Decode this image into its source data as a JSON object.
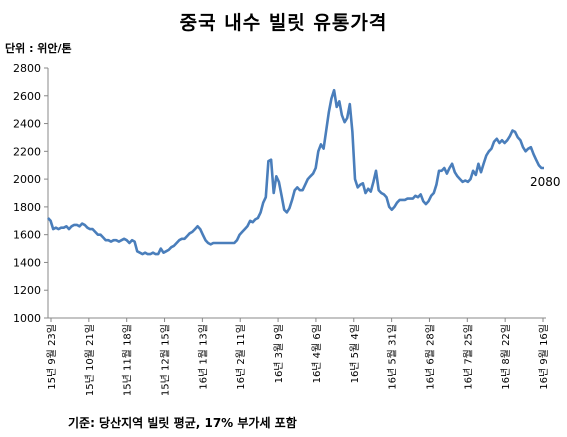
{
  "chart_data": {
    "type": "line",
    "title": "중국 내수 빌릿 유통가격",
    "unit_label": "단위 : 위안/톤",
    "source": "기준: 당산지역 빌릿 평균, 17% 부가세 포함",
    "end_label": "2080",
    "ylim": [
      1000,
      2800
    ],
    "yticks": [
      "1000",
      "1200",
      "1400",
      "1600",
      "1800",
      "2000",
      "2200",
      "2400",
      "2600",
      "2800"
    ],
    "grid": false,
    "legend": "none",
    "line_color": "#4a7ebb",
    "x_tick_labels": [
      "15년 9월 23일",
      "15년 10월 21일",
      "15년 11월 18일",
      "15년 12월 15일",
      "16년 1월 13일",
      "16년 2월 11일",
      "16년 3월 9일",
      "16년 4월 6일",
      "16년 5월 4일",
      "16년 5월 31일",
      "16년 6월 28일",
      "16년 7월 25일",
      "16년 8월 22일",
      "16년 9월 16일"
    ],
    "series": [
      {
        "values": [
          1720,
          1700,
          1640,
          1650,
          1640,
          1650,
          1650,
          1660,
          1640,
          1660,
          1670,
          1670,
          1660,
          1680,
          1670,
          1650,
          1640,
          1640,
          1620,
          1600,
          1600,
          1580,
          1560,
          1560,
          1550,
          1560,
          1560,
          1550,
          1560,
          1570,
          1560,
          1540,
          1560,
          1550,
          1480,
          1470,
          1460,
          1470,
          1460,
          1460,
          1470,
          1460,
          1460,
          1500,
          1470,
          1480,
          1490,
          1510,
          1520,
          1540,
          1560,
          1570,
          1570,
          1590,
          1610,
          1620,
          1640,
          1660,
          1640,
          1600,
          1560,
          1540,
          1530,
          1540,
          1540,
          1540,
          1540,
          1540,
          1540,
          1540,
          1540,
          1540,
          1560,
          1600,
          1620,
          1640,
          1660,
          1700,
          1690,
          1710,
          1720,
          1760,
          1830,
          1870,
          2130,
          2140,
          1900,
          2020,
          1980,
          1880,
          1780,
          1760,
          1790,
          1850,
          1920,
          1940,
          1920,
          1920,
          1960,
          2000,
          2020,
          2040,
          2080,
          2200,
          2250,
          2220,
          2350,
          2480,
          2580,
          2640,
          2520,
          2560,
          2460,
          2410,
          2440,
          2540,
          2340,
          2000,
          1940,
          1960,
          1970,
          1900,
          1930,
          1910,
          1980,
          2060,
          1920,
          1900,
          1890,
          1870,
          1800,
          1780,
          1800,
          1830,
          1850,
          1850,
          1850,
          1860,
          1860,
          1860,
          1880,
          1870,
          1890,
          1840,
          1820,
          1840,
          1880,
          1900,
          1960,
          2060,
          2060,
          2080,
          2040,
          2080,
          2110,
          2050,
          2020,
          2000,
          1980,
          1990,
          1980,
          2000,
          2060,
          2030,
          2110,
          2050,
          2110,
          2170,
          2200,
          2220,
          2270,
          2290,
          2260,
          2280,
          2260,
          2280,
          2310,
          2350,
          2340,
          2300,
          2280,
          2230,
          2200,
          2220,
          2230,
          2180,
          2140,
          2100,
          2080,
          2080
        ]
      }
    ]
  }
}
